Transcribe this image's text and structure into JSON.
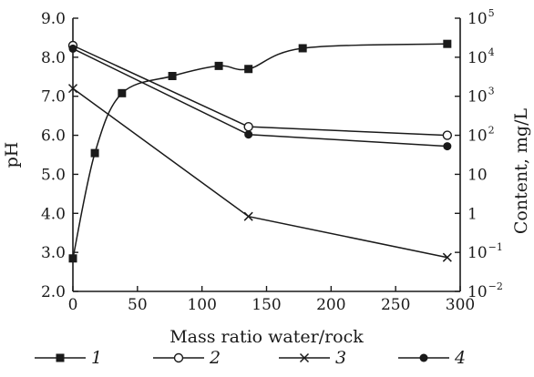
{
  "chart_data": {
    "type": "line",
    "xlabel": "Mass ratio water/rock",
    "ylabel_left": "pH",
    "ylabel_right": "Content, mg/L",
    "xlim": [
      0,
      300
    ],
    "ylim_left": [
      2.0,
      9.0
    ],
    "ylim_right_log10": [
      -2,
      5
    ],
    "right_axis_scale": "log",
    "x_ticks": [
      "0",
      "50",
      "100",
      "150",
      "200",
      "250",
      "300"
    ],
    "y_left_ticks": [
      "2.0",
      "3.0",
      "4.0",
      "5.0",
      "6.0",
      "7.0",
      "8.0",
      "9.0"
    ],
    "y_right_ticks": [
      {
        "base": "10",
        "exp": "−2"
      },
      {
        "base": "10",
        "exp": "−1"
      },
      {
        "base": "1",
        "exp": ""
      },
      {
        "base": "10",
        "exp": ""
      },
      {
        "base": "10",
        "exp": "2"
      },
      {
        "base": "10",
        "exp": "3"
      },
      {
        "base": "10",
        "exp": "4"
      },
      {
        "base": "10",
        "exp": "5"
      }
    ],
    "grid": false,
    "legend_position": "bottom",
    "series": [
      {
        "name": "1",
        "axis": "right",
        "marker": "filled-square",
        "x": [
          0,
          17,
          38,
          77,
          113,
          136,
          178,
          290
        ],
        "y": [
          0.07,
          35,
          1200,
          3300,
          6000,
          5000,
          17000,
          22000
        ]
      },
      {
        "name": "2",
        "axis": "left",
        "marker": "open-circle",
        "x": [
          0,
          136,
          290
        ],
        "y": [
          8.3,
          6.22,
          6.0
        ]
      },
      {
        "name": "3",
        "axis": "left",
        "marker": "cross",
        "x": [
          0,
          136,
          290
        ],
        "y": [
          7.2,
          3.92,
          2.87
        ]
      },
      {
        "name": "4",
        "axis": "left",
        "marker": "filled-circle",
        "x": [
          0,
          136,
          290
        ],
        "y": [
          8.22,
          6.02,
          5.72
        ]
      }
    ]
  },
  "colors": {
    "ink": "#1a1a1a",
    "background": "#ffffff"
  }
}
